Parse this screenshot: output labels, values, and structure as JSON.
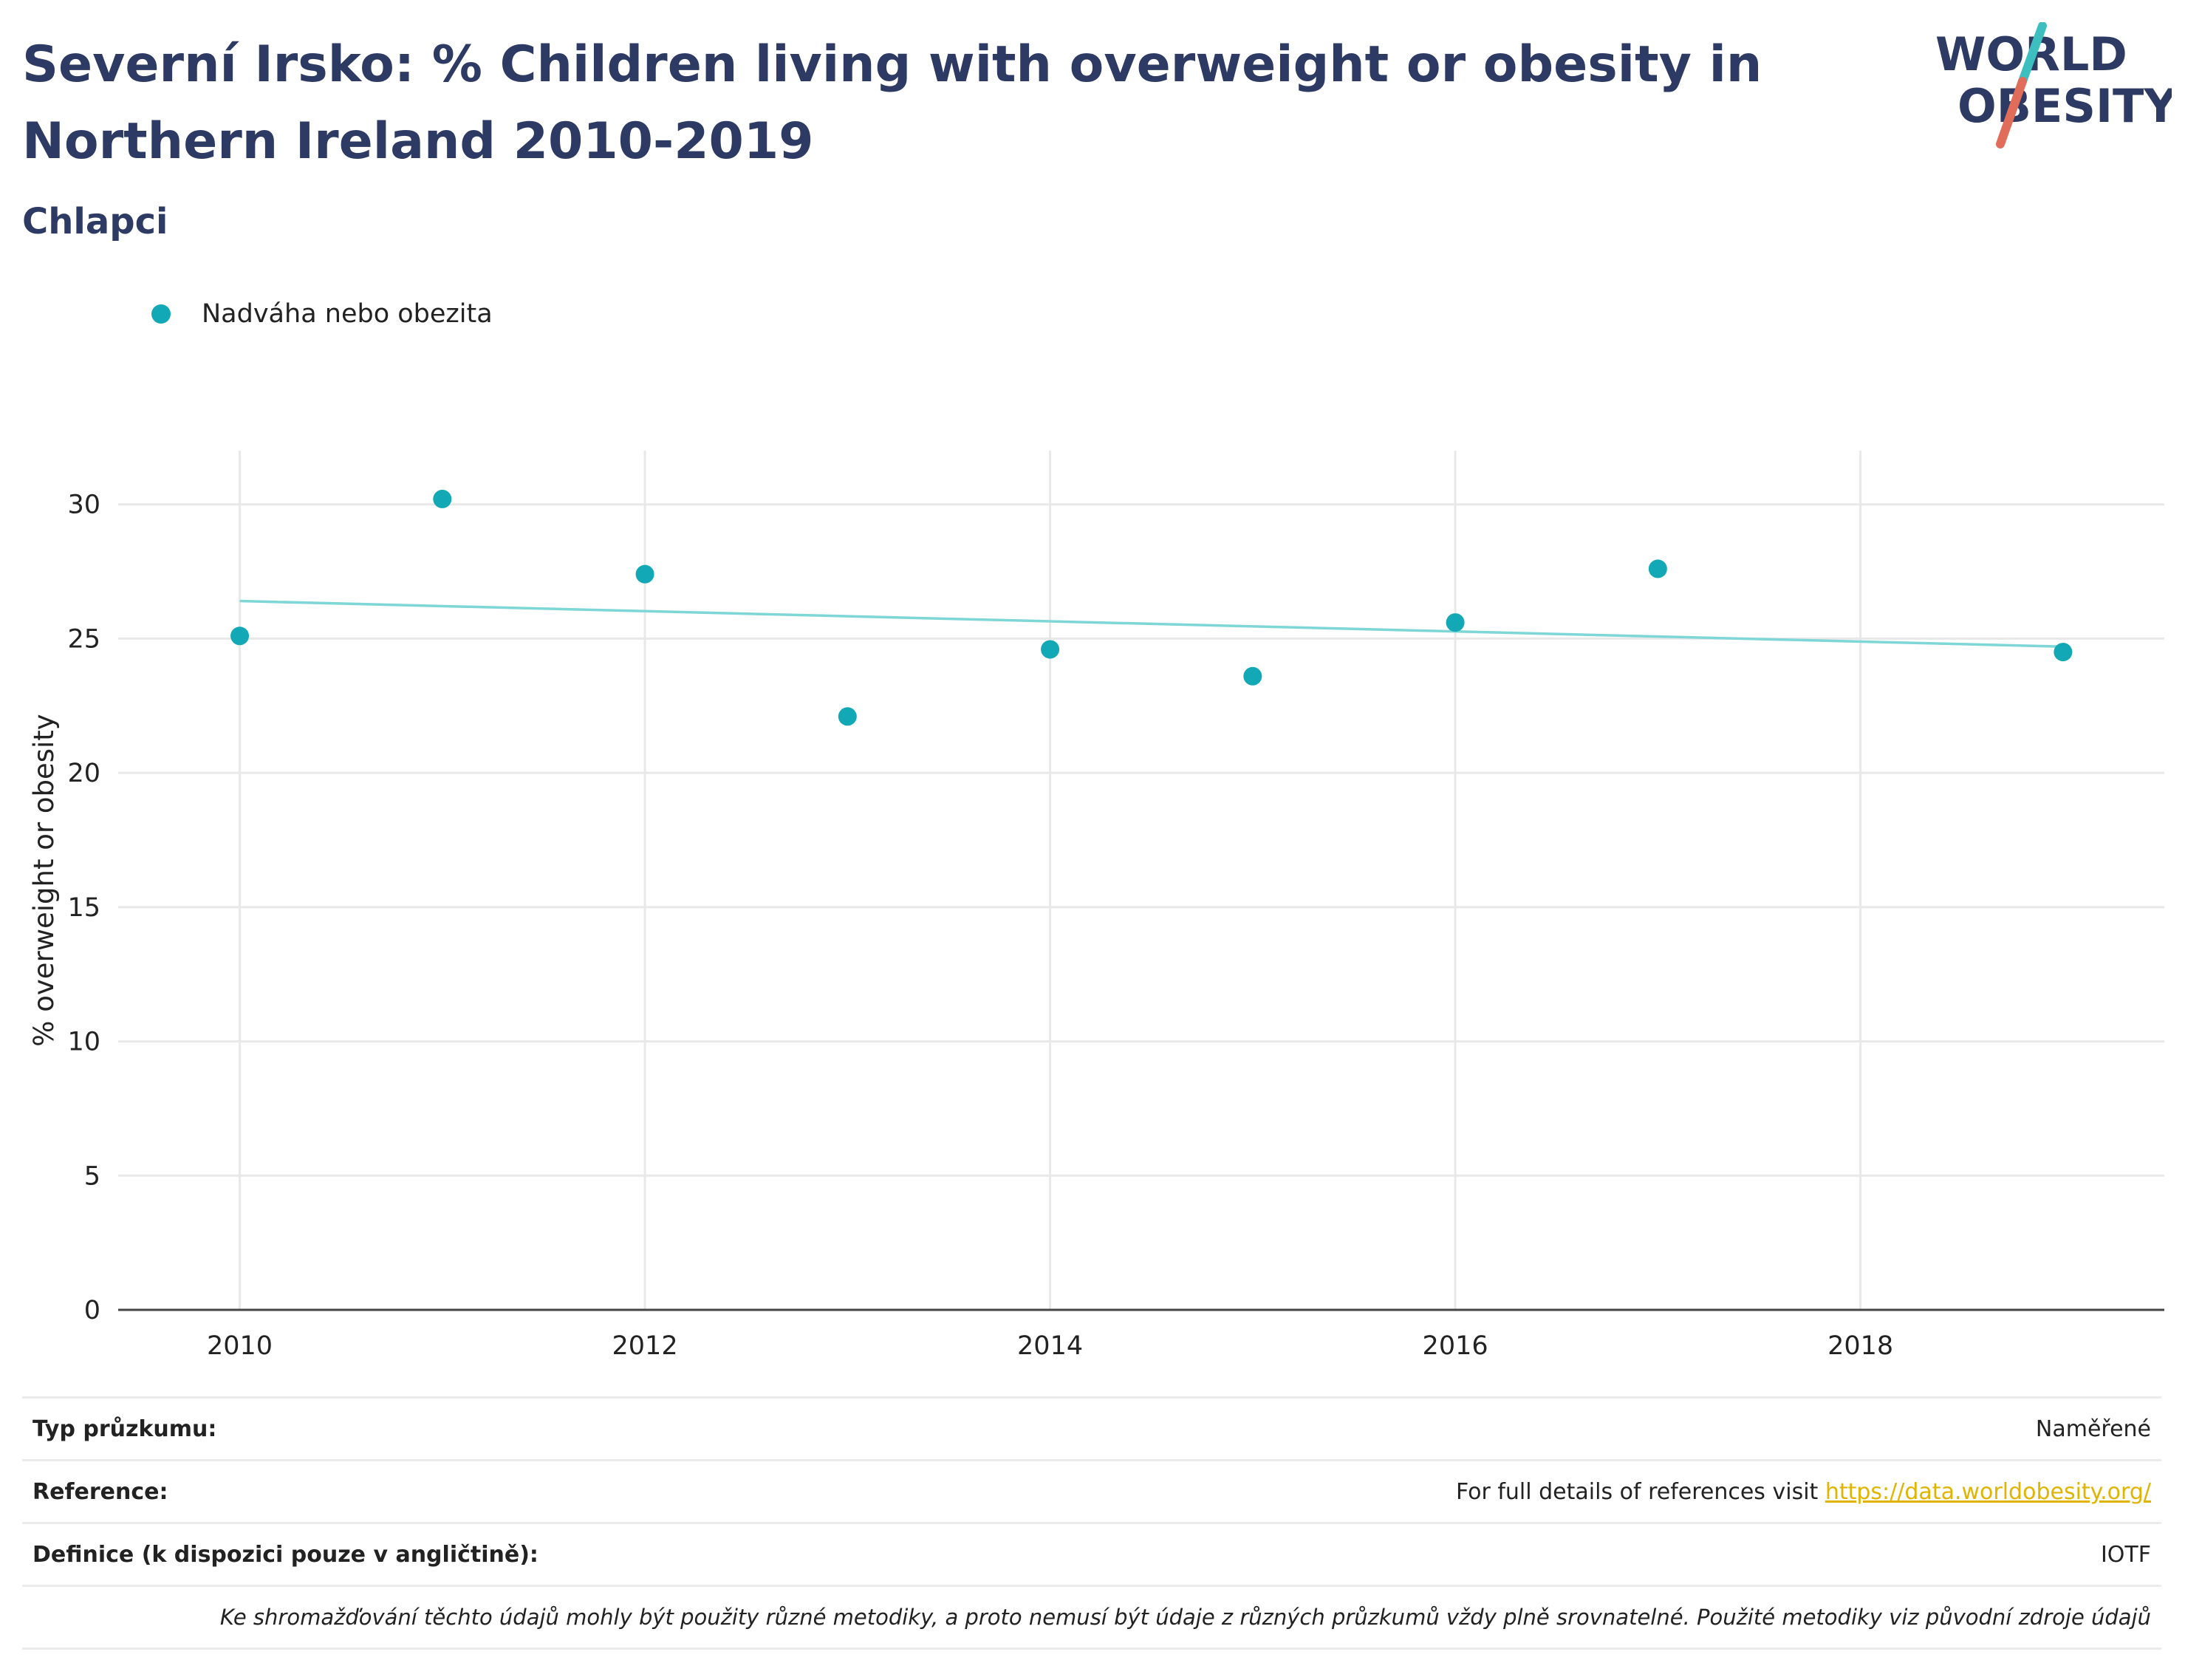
{
  "header": {
    "title": "Severní Irsko: % Children living with overweight or obesity in Northern Ireland 2010-2019",
    "subtitle": "Chlapci"
  },
  "logo": {
    "line1": "WORLD",
    "line2": "OBESITY",
    "slash_top_color": "#3dbfbf",
    "slash_bottom_color": "#e06c5a"
  },
  "colors": {
    "point": "#12a8b5",
    "trend": "#7fd6d6",
    "grid": "#e8e8e8",
    "axis": "#444444",
    "title": "#2d3a63"
  },
  "chart_data": {
    "type": "scatter",
    "title": "Severní Irsko: % Children living with overweight or obesity in Northern Ireland 2010-2019",
    "subtitle": "Chlapci",
    "ylabel": "% overweight or obesity",
    "xlabel": "",
    "xlim": [
      2009.4,
      2019.5
    ],
    "ylim": [
      0,
      32
    ],
    "xticks": [
      2010,
      2012,
      2014,
      2016,
      2018
    ],
    "yticks": [
      0,
      5,
      10,
      15,
      20,
      25,
      30
    ],
    "grid": true,
    "legend_position": "top-left",
    "series": [
      {
        "name": "Nadváha nebo obezita",
        "x": [
          2010,
          2011,
          2012,
          2013,
          2014,
          2015,
          2016,
          2017,
          2019
        ],
        "y": [
          25.1,
          30.2,
          27.4,
          22.1,
          24.6,
          23.6,
          25.6,
          27.6,
          24.5
        ]
      }
    ],
    "trendline": {
      "x": [
        2010,
        2019
      ],
      "y": [
        26.4,
        24.7
      ]
    }
  },
  "info": {
    "survey_type_label": "Typ průzkumu:",
    "survey_type_value": "Naměřené",
    "reference_label": "Reference:",
    "reference_text": "For full details of references visit",
    "reference_link": "https://data.worldobesity.org/",
    "definition_label": "Definice (k dispozici pouze v angličtině):",
    "definition_value": "IOTF",
    "note": "Ke shromažďování těchto údajů mohly být použity různé metodiky, a proto nemusí být údaje z různých průzkumů vždy plně srovnatelné. Použité metodiky viz původní zdroje údajů"
  }
}
